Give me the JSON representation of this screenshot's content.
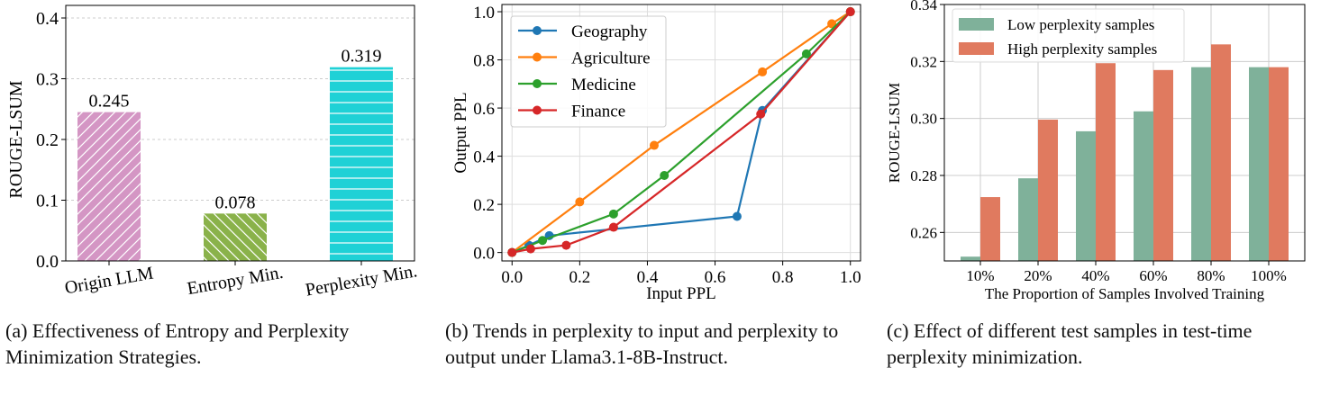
{
  "chart_data": [
    {
      "type": "bar",
      "ylabel": "ROUGE-LSUM",
      "ylim": [
        0,
        0.4
      ],
      "yticks": [
        "0.0",
        "0.1",
        "0.2",
        "0.3",
        "0.4"
      ],
      "grid": "horizontal-dashed",
      "categories": [
        "Origin LLM",
        "Entropy Min.",
        "Perplexity Min."
      ],
      "values": [
        0.245,
        0.078,
        0.319
      ],
      "data_labels": [
        "0.245",
        "0.078",
        "0.319"
      ],
      "colors": [
        "#d496c4",
        "#8ab24a",
        "#1fd1d6"
      ],
      "hatches": [
        "diagonal",
        "back-diagonal",
        "horizontal"
      ],
      "caption": "(a) Effectiveness of Entropy and Perplexity Minimization Strategies."
    },
    {
      "type": "line",
      "xlabel": "Input PPL",
      "ylabel": "Output PPL",
      "xlim": [
        -0.03,
        1.03
      ],
      "ylim": [
        -0.035,
        1.03
      ],
      "xticks": [
        "0.0",
        "0.2",
        "0.4",
        "0.6",
        "0.8",
        "1.0"
      ],
      "yticks": [
        "0.0",
        "0.2",
        "0.4",
        "0.6",
        "0.8",
        "1.0"
      ],
      "grid": true,
      "legend": "top-left",
      "series": [
        {
          "name": "Geography",
          "color": "#1f77b4",
          "x": [
            0,
            0.05,
            0.11,
            0.665,
            0.74,
            1
          ],
          "y": [
            0,
            0.03,
            0.07,
            0.15,
            0.59,
            1
          ]
        },
        {
          "name": "Agriculture",
          "color": "#ff7f0e",
          "x": [
            0,
            0.2,
            0.42,
            0.74,
            0.945,
            1
          ],
          "y": [
            0,
            0.21,
            0.445,
            0.75,
            0.95,
            1
          ]
        },
        {
          "name": "Medicine",
          "color": "#2ca02c",
          "x": [
            0,
            0.09,
            0.3,
            0.45,
            0.87,
            1
          ],
          "y": [
            0,
            0.05,
            0.16,
            0.32,
            0.825,
            1
          ]
        },
        {
          "name": "Finance",
          "color": "#d62728",
          "x": [
            0,
            0.055,
            0.16,
            0.3,
            0.735,
            1
          ],
          "y": [
            0,
            0.015,
            0.03,
            0.105,
            0.575,
            1
          ]
        }
      ],
      "caption": "(b) Trends in perplexity to input and perplexity to output under Llama3.1-8B-Instruct."
    },
    {
      "type": "bar",
      "xlabel": "The Proportion of Samples Involved Training",
      "ylabel": "ROUGE-LSUM",
      "ylim": [
        0.25,
        0.34
      ],
      "yticks": [
        "0.26",
        "0.28",
        "0.30",
        "0.32",
        "0.34"
      ],
      "grid": true,
      "legend": "top-left",
      "categories": [
        "10%",
        "20%",
        "40%",
        "60%",
        "80%",
        "100%"
      ],
      "series": [
        {
          "name": "Low perplexity samples",
          "color": "#7fb19a",
          "values": [
            0.2515,
            0.279,
            0.2955,
            0.3025,
            0.318,
            0.318
          ]
        },
        {
          "name": "High perplexity samples",
          "color": "#e07a5f",
          "values": [
            0.2724,
            0.2996,
            0.3194,
            0.317,
            0.326,
            0.318
          ]
        }
      ],
      "caption": "(c) Effect of different test samples in test-time perplexity minimization."
    }
  ]
}
